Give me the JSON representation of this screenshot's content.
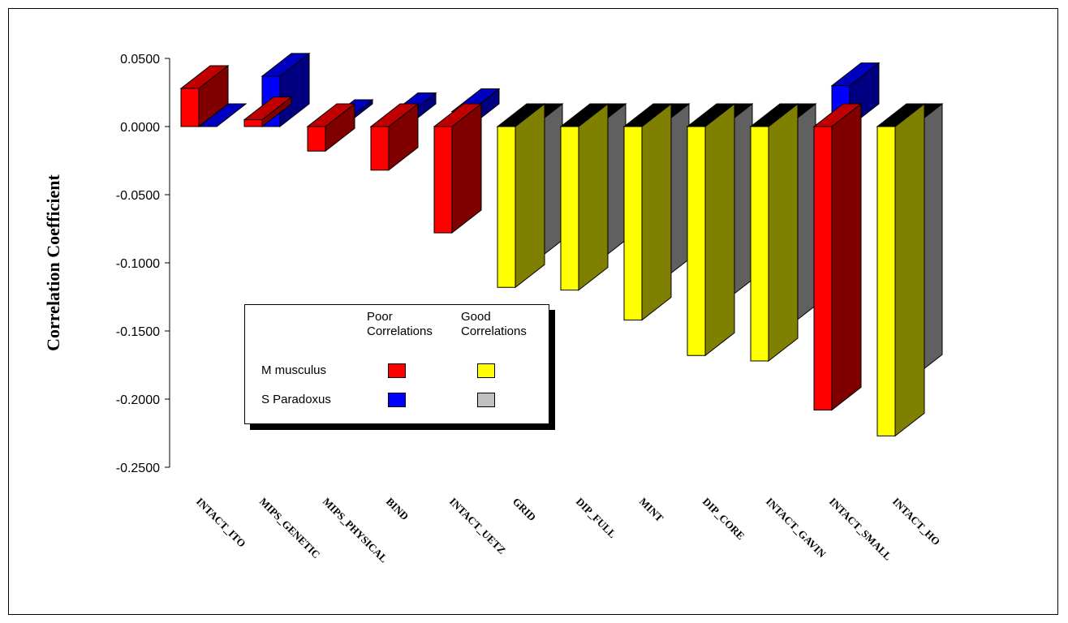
{
  "chart_data": {
    "type": "bar",
    "title": "",
    "xlabel": "",
    "ylabel": "Correlation Coefficient",
    "ylim": [
      -0.25,
      0.05
    ],
    "yticks": [
      0.05,
      0.0,
      -0.05,
      -0.1,
      -0.15,
      -0.2,
      -0.25
    ],
    "ytick_labels": [
      "0.0500",
      "0.0000",
      "-0.0500",
      "-0.1000",
      "-0.1500",
      "-0.2000",
      "-0.2500"
    ],
    "grid": false,
    "legend_position": "center-left",
    "categories": [
      "INTACT_ITO",
      "MIPS_GENETIC",
      "MIPS_PHYSICAL",
      "BIND",
      "INTACT_UETZ",
      "GRID",
      "DIP_FULL",
      "MINT",
      "DIP_CORE",
      "INTACT_GAVIN",
      "INTACT_SMALL",
      "INTACT_HO"
    ],
    "series": [
      {
        "name": "M musculus",
        "values": [
          0.028,
          0.005,
          -0.018,
          -0.032,
          -0.078,
          -0.118,
          -0.12,
          -0.142,
          -0.168,
          -0.172,
          -0.208,
          -0.227
        ]
      },
      {
        "name": "S Paradoxus",
        "values": [
          0.0,
          0.037,
          0.003,
          0.008,
          0.011,
          -0.1,
          -0.1,
          -0.114,
          -0.129,
          -0.148,
          0.03,
          -0.184
        ]
      }
    ],
    "quality": [
      "poor",
      "poor",
      "poor",
      "poor",
      "poor",
      "good",
      "good",
      "good",
      "good",
      "good",
      "poor",
      "good"
    ]
  },
  "legend": {
    "col_poor": [
      "Poor",
      "Correlations"
    ],
    "col_good": [
      "Good",
      "Correlations"
    ],
    "rows": [
      {
        "label": "M musculus",
        "poor_color": "#ff0000",
        "good_color": "#ffff00"
      },
      {
        "label": "S Paradoxus",
        "poor_color": "#0000ff",
        "good_color": "#c0c0c0"
      }
    ]
  },
  "colors": {
    "m_poor": {
      "front": "#ff0000",
      "side": "#800000",
      "top": "#c00000"
    },
    "m_good": {
      "front": "#ffff00",
      "side": "#808000",
      "top": "#000000"
    },
    "s_poor": {
      "front": "#0000ff",
      "side": "#000080",
      "top": "#0000c0"
    },
    "s_good": {
      "front": "#c0c0c0",
      "side": "#606060",
      "top": "#000000"
    }
  }
}
